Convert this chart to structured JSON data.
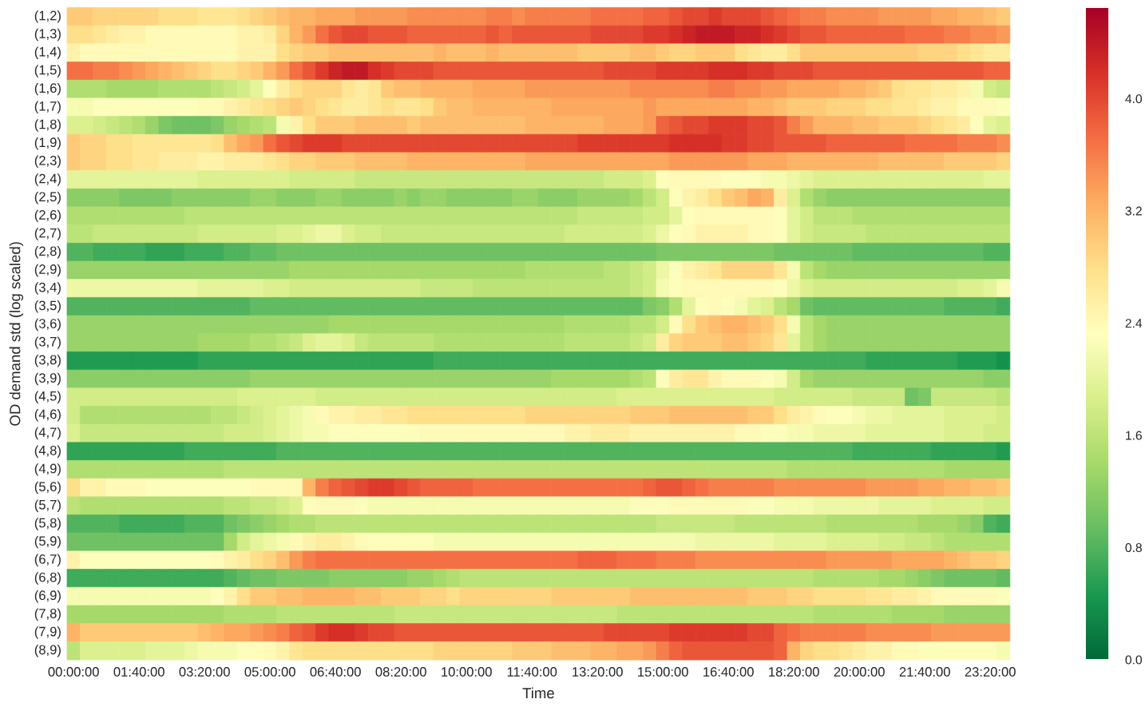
{
  "chart_data": {
    "type": "heatmap",
    "xlabel": "Time",
    "ylabel": "OD demand std (log scaled)",
    "categories": [
      "00:00:00",
      null,
      null,
      null,
      null,
      "01:40:00",
      null,
      null,
      null,
      null,
      "03:20:00",
      null,
      null,
      null,
      null,
      "05:00:00",
      null,
      null,
      null,
      null,
      "06:40:00",
      null,
      null,
      null,
      null,
      "08:20:00",
      null,
      null,
      null,
      null,
      "10:00:00",
      null,
      null,
      null,
      null,
      "11:40:00",
      null,
      null,
      null,
      null,
      "13:20:00",
      null,
      null,
      null,
      null,
      "15:00:00",
      null,
      null,
      null,
      null,
      "16:40:00",
      null,
      null,
      null,
      null,
      "18:20:00",
      null,
      null,
      null,
      null,
      "20:00:00",
      null,
      null,
      null,
      null,
      "21:40:00",
      null,
      null,
      null,
      null,
      "23:20:00",
      null
    ],
    "y_categories": [
      "(1,2)",
      "(1,3)",
      "(1,4)",
      "(1,5)",
      "(1,6)",
      "(1,7)",
      "(1,8)",
      "(1,9)",
      "(2,3)",
      "(2,4)",
      "(2,5)",
      "(2,6)",
      "(2,7)",
      "(2,8)",
      "(2,9)",
      "(3,4)",
      "(3,5)",
      "(3,6)",
      "(3,7)",
      "(3,8)",
      "(3,9)",
      "(4,5)",
      "(4,6)",
      "(4,7)",
      "(4,8)",
      "(4,9)",
      "(5,6)",
      "(5,7)",
      "(5,8)",
      "(5,9)",
      "(6,7)",
      "(6,8)",
      "(6,9)",
      "(7,8)",
      "(7,9)",
      "(8,9)"
    ],
    "clim": [
      0,
      4.65
    ],
    "cticks": [
      {
        "value": 0,
        "label": "0.0"
      },
      0.8,
      1.6,
      2.4,
      3.2,
      {
        "value": 4,
        "label": "4.0"
      }
    ],
    "cells": [
      [
        3.0,
        3.0,
        2.9,
        2.9,
        2.9,
        2.9,
        2.9,
        2.8,
        2.8,
        2.8,
        2.7,
        2.7,
        2.7,
        2.8,
        2.9,
        3.0,
        3.1,
        3.2,
        3.2,
        3.3,
        3.3,
        3.3,
        3.4,
        3.4,
        3.4,
        3.4,
        3.5,
        3.5,
        3.5,
        3.5,
        3.5,
        3.5,
        3.6,
        3.6,
        3.5,
        3.6,
        3.6,
        3.6,
        3.6,
        3.6,
        3.7,
        3.7,
        3.7,
        3.7,
        3.8,
        3.8,
        3.9,
        4.0,
        4.0,
        4.1,
        4.0,
        4.0,
        4.0,
        3.9,
        3.8,
        3.7,
        3.6,
        3.6,
        3.5,
        3.5,
        3.5,
        3.5,
        3.4,
        3.4,
        3.4,
        3.4,
        3.3,
        3.3,
        3.2,
        3.2,
        3.1,
        3.0
      ],
      [
        2.8,
        2.8,
        2.7,
        2.6,
        2.5,
        2.5,
        2.4,
        2.4,
        2.4,
        2.4,
        2.4,
        2.4,
        2.4,
        2.5,
        2.5,
        2.6,
        2.9,
        3.2,
        3.4,
        3.7,
        3.9,
        4.0,
        4.0,
        3.9,
        3.9,
        3.9,
        3.8,
        3.8,
        3.8,
        3.8,
        3.8,
        3.8,
        3.9,
        3.8,
        3.9,
        3.9,
        3.9,
        3.9,
        3.9,
        3.9,
        4.0,
        4.0,
        4.0,
        4.0,
        4.1,
        4.1,
        4.2,
        4.3,
        4.4,
        4.4,
        4.4,
        4.3,
        4.3,
        4.2,
        4.1,
        4.0,
        3.9,
        3.9,
        3.8,
        3.8,
        3.8,
        3.8,
        3.8,
        3.8,
        3.7,
        3.7,
        3.7,
        3.6,
        3.6,
        3.5,
        3.5,
        3.4
      ],
      [
        2.5,
        2.4,
        2.4,
        2.4,
        2.4,
        2.4,
        2.4,
        2.4,
        2.4,
        2.4,
        2.4,
        2.4,
        2.4,
        2.5,
        2.5,
        2.5,
        2.8,
        2.9,
        3.0,
        3.0,
        3.1,
        3.1,
        3.1,
        3.1,
        3.1,
        3.1,
        3.1,
        3.1,
        3.2,
        3.1,
        3.1,
        3.1,
        3.2,
        3.1,
        3.1,
        3.1,
        3.1,
        3.1,
        3.1,
        3.0,
        3.0,
        3.0,
        3.0,
        3.1,
        3.1,
        3.0,
        2.9,
        2.9,
        3.0,
        3.0,
        3.0,
        2.8,
        2.7,
        2.6,
        2.6,
        2.8,
        3.0,
        3.0,
        3.0,
        3.0,
        3.0,
        3.0,
        3.0,
        3.0,
        3.0,
        2.9,
        2.9,
        2.9,
        2.8,
        2.7,
        2.6,
        2.6
      ],
      [
        3.7,
        3.7,
        3.6,
        3.6,
        3.5,
        3.4,
        3.3,
        3.2,
        3.1,
        3.0,
        2.9,
        2.8,
        2.8,
        2.9,
        3.0,
        3.2,
        3.4,
        3.7,
        3.9,
        4.1,
        4.3,
        4.4,
        4.4,
        4.2,
        4.1,
        4.0,
        4.0,
        4.0,
        3.9,
        3.9,
        3.9,
        3.9,
        3.9,
        3.9,
        3.9,
        3.9,
        3.9,
        3.9,
        3.9,
        3.9,
        3.9,
        4.0,
        4.0,
        4.0,
        4.0,
        4.1,
        4.1,
        4.1,
        4.1,
        4.2,
        4.2,
        4.2,
        4.1,
        4.1,
        4.0,
        4.0,
        4.0,
        3.9,
        3.9,
        3.9,
        3.9,
        3.9,
        3.9,
        3.9,
        3.9,
        3.9,
        3.9,
        3.9,
        3.9,
        3.9,
        3.8,
        3.8
      ],
      [
        1.5,
        1.5,
        1.5,
        1.4,
        1.4,
        1.4,
        1.4,
        1.5,
        1.5,
        1.5,
        1.5,
        1.6,
        1.7,
        1.8,
        2.0,
        2.3,
        2.6,
        2.8,
        2.9,
        2.9,
        2.9,
        2.7,
        2.6,
        2.7,
        3.0,
        3.1,
        3.1,
        3.2,
        3.2,
        3.2,
        3.2,
        3.3,
        3.3,
        3.3,
        3.3,
        3.4,
        3.4,
        3.4,
        3.4,
        3.4,
        3.4,
        3.4,
        3.4,
        3.5,
        3.5,
        3.5,
        3.5,
        3.5,
        3.5,
        3.6,
        3.6,
        3.5,
        3.5,
        3.4,
        3.4,
        3.3,
        3.3,
        3.3,
        3.3,
        3.2,
        3.2,
        3.1,
        3.0,
        2.8,
        2.7,
        2.7,
        2.6,
        2.6,
        2.5,
        2.2,
        1.8,
        1.7
      ],
      [
        2.2,
        2.2,
        2.3,
        2.3,
        2.3,
        2.3,
        2.3,
        2.3,
        2.3,
        2.3,
        2.4,
        2.4,
        2.5,
        2.6,
        2.7,
        2.8,
        2.9,
        3.0,
        2.9,
        2.8,
        2.7,
        2.6,
        2.6,
        2.7,
        2.8,
        2.7,
        2.7,
        2.8,
        3.0,
        3.1,
        3.1,
        3.2,
        3.2,
        3.2,
        3.2,
        3.2,
        3.2,
        3.3,
        3.3,
        3.3,
        3.3,
        3.3,
        3.3,
        3.3,
        3.4,
        3.3,
        3.3,
        3.3,
        3.3,
        3.3,
        3.3,
        3.3,
        3.2,
        3.2,
        3.1,
        3.0,
        3.0,
        3.0,
        2.9,
        2.9,
        2.9,
        2.8,
        2.8,
        2.7,
        2.7,
        2.6,
        2.5,
        2.5,
        2.4,
        2.4,
        2.4,
        2.3
      ],
      [
        1.9,
        1.9,
        1.8,
        1.7,
        1.6,
        1.5,
        1.3,
        1.1,
        1.0,
        1.0,
        1.0,
        1.1,
        1.3,
        1.4,
        1.5,
        1.6,
        2.2,
        2.5,
        2.8,
        3.0,
        3.0,
        3.0,
        3.1,
        3.1,
        3.1,
        3.1,
        3.0,
        3.1,
        3.1,
        3.1,
        3.1,
        3.1,
        3.1,
        3.1,
        3.1,
        3.2,
        3.2,
        3.2,
        3.2,
        3.2,
        3.2,
        3.3,
        3.3,
        3.3,
        3.4,
        3.8,
        3.9,
        4.0,
        4.0,
        4.1,
        4.1,
        4.1,
        4.0,
        4.0,
        3.9,
        3.6,
        3.4,
        3.2,
        3.2,
        3.2,
        3.1,
        3.1,
        3.0,
        3.0,
        3.0,
        2.9,
        2.8,
        2.7,
        2.6,
        2.3,
        2.0,
        1.9
      ],
      [
        3.0,
        2.9,
        2.9,
        2.8,
        2.8,
        2.7,
        2.7,
        2.7,
        2.7,
        2.7,
        2.7,
        2.8,
        3.1,
        3.3,
        3.4,
        3.7,
        3.9,
        4.0,
        4.1,
        4.1,
        4.1,
        4.0,
        4.0,
        4.0,
        4.0,
        4.0,
        4.0,
        4.0,
        4.0,
        4.0,
        4.0,
        4.0,
        4.0,
        4.0,
        4.0,
        4.0,
        4.0,
        4.0,
        4.0,
        4.1,
        4.1,
        4.1,
        4.1,
        4.1,
        4.1,
        4.1,
        4.2,
        4.2,
        4.2,
        4.2,
        4.1,
        4.1,
        4.0,
        4.0,
        3.9,
        3.9,
        3.9,
        3.9,
        3.8,
        3.8,
        3.8,
        3.8,
        3.8,
        3.8,
        3.7,
        3.7,
        3.7,
        3.7,
        3.6,
        3.6,
        3.6,
        3.5
      ],
      [
        3.0,
        2.9,
        2.9,
        2.8,
        2.8,
        2.7,
        2.7,
        2.6,
        2.6,
        2.6,
        2.5,
        2.5,
        2.6,
        2.6,
        2.6,
        2.7,
        2.8,
        2.9,
        2.9,
        3.0,
        3.0,
        3.0,
        3.1,
        3.1,
        3.1,
        3.1,
        3.2,
        3.2,
        3.2,
        3.2,
        3.2,
        3.2,
        3.2,
        3.2,
        3.2,
        3.3,
        3.3,
        3.3,
        3.3,
        3.3,
        3.3,
        3.3,
        3.3,
        3.3,
        3.3,
        3.3,
        3.4,
        3.4,
        3.4,
        3.4,
        3.4,
        3.4,
        3.3,
        3.3,
        3.3,
        3.2,
        3.2,
        3.2,
        3.2,
        3.2,
        3.2,
        3.2,
        3.1,
        3.1,
        3.1,
        3.1,
        3.1,
        3.0,
        3.0,
        3.0,
        3.0,
        2.9
      ],
      [
        2.0,
        2.0,
        2.0,
        2.0,
        2.0,
        2.0,
        2.0,
        2.0,
        2.0,
        2.0,
        1.9,
        1.9,
        1.9,
        1.9,
        1.9,
        1.9,
        1.9,
        1.8,
        1.8,
        1.8,
        1.8,
        1.8,
        1.7,
        1.7,
        1.7,
        1.7,
        1.7,
        1.7,
        1.7,
        1.7,
        1.7,
        1.7,
        1.7,
        1.7,
        1.7,
        1.7,
        1.7,
        1.7,
        1.7,
        1.7,
        1.7,
        1.8,
        1.8,
        1.8,
        1.9,
        2.3,
        2.4,
        2.4,
        2.4,
        2.4,
        2.3,
        2.3,
        2.3,
        2.2,
        2.2,
        2.1,
        2.0,
        1.9,
        1.9,
        1.9,
        1.9,
        1.9,
        1.9,
        1.9,
        1.9,
        1.9,
        1.9,
        1.9,
        1.9,
        1.9,
        2.0,
        2.0
      ],
      [
        1.2,
        1.2,
        1.2,
        1.2,
        1.1,
        1.1,
        1.1,
        1.1,
        1.2,
        1.2,
        1.2,
        1.2,
        1.2,
        1.2,
        1.3,
        1.3,
        1.2,
        1.2,
        1.2,
        1.3,
        1.3,
        1.2,
        1.2,
        1.2,
        1.2,
        1.3,
        1.2,
        1.3,
        1.3,
        1.2,
        1.2,
        1.2,
        1.2,
        1.2,
        1.3,
        1.3,
        1.2,
        1.2,
        1.2,
        1.3,
        1.3,
        1.3,
        1.3,
        1.4,
        1.6,
        1.8,
        2.3,
        2.5,
        2.6,
        2.8,
        3.0,
        3.1,
        3.3,
        3.2,
        2.6,
        1.9,
        1.5,
        1.3,
        1.2,
        1.2,
        1.2,
        1.2,
        1.2,
        1.2,
        1.2,
        1.2,
        1.2,
        1.2,
        1.2,
        1.2,
        1.2,
        1.2
      ],
      [
        1.5,
        1.5,
        1.5,
        1.5,
        1.5,
        1.5,
        1.5,
        1.5,
        1.5,
        1.6,
        1.6,
        1.6,
        1.6,
        1.6,
        1.6,
        1.6,
        1.6,
        1.6,
        1.6,
        1.6,
        1.6,
        1.6,
        1.6,
        1.6,
        1.6,
        1.6,
        1.6,
        1.6,
        1.6,
        1.6,
        1.6,
        1.6,
        1.6,
        1.6,
        1.6,
        1.6,
        1.6,
        1.6,
        1.6,
        1.7,
        1.7,
        1.7,
        1.7,
        1.7,
        1.8,
        1.8,
        2.0,
        2.3,
        2.4,
        2.4,
        2.4,
        2.4,
        2.4,
        2.4,
        2.3,
        2.0,
        1.8,
        1.6,
        1.6,
        1.6,
        1.5,
        1.5,
        1.5,
        1.5,
        1.5,
        1.5,
        1.5,
        1.5,
        1.5,
        1.5,
        1.5,
        1.5
      ],
      [
        1.6,
        1.6,
        1.7,
        1.7,
        1.7,
        1.7,
        1.7,
        1.7,
        1.7,
        1.7,
        1.8,
        1.8,
        1.8,
        1.8,
        1.8,
        1.8,
        1.9,
        1.9,
        2.0,
        2.1,
        2.1,
        1.9,
        1.8,
        1.8,
        1.7,
        1.7,
        1.7,
        1.7,
        1.7,
        1.7,
        1.7,
        1.7,
        1.7,
        1.7,
        1.7,
        1.7,
        1.7,
        1.7,
        1.8,
        1.8,
        1.8,
        1.8,
        1.8,
        1.8,
        1.9,
        2.1,
        2.3,
        2.4,
        2.5,
        2.5,
        2.5,
        2.5,
        2.4,
        2.4,
        2.3,
        2.0,
        1.8,
        1.7,
        1.7,
        1.7,
        1.7,
        1.6,
        1.6,
        1.6,
        1.6,
        1.6,
        1.6,
        1.6,
        1.6,
        1.6,
        1.6,
        1.6
      ],
      [
        0.8,
        0.8,
        0.7,
        0.7,
        0.7,
        0.7,
        0.6,
        0.6,
        0.6,
        0.7,
        0.7,
        0.7,
        0.8,
        0.8,
        0.9,
        0.9,
        1.0,
        1.0,
        1.0,
        1.0,
        1.0,
        1.0,
        1.0,
        1.0,
        1.0,
        1.0,
        1.0,
        1.0,
        1.0,
        1.0,
        1.0,
        1.0,
        1.0,
        1.0,
        1.0,
        1.0,
        1.0,
        1.0,
        1.0,
        1.0,
        1.0,
        1.0,
        1.0,
        1.0,
        1.0,
        1.1,
        1.1,
        1.1,
        1.1,
        1.1,
        1.1,
        1.1,
        1.1,
        1.1,
        1.0,
        1.0,
        1.0,
        1.0,
        1.0,
        1.0,
        0.9,
        0.9,
        0.9,
        0.9,
        0.9,
        0.9,
        0.9,
        0.9,
        0.9,
        0.9,
        0.8,
        0.8
      ],
      [
        1.3,
        1.3,
        1.3,
        1.3,
        1.3,
        1.3,
        1.3,
        1.3,
        1.3,
        1.3,
        1.3,
        1.3,
        1.3,
        1.3,
        1.3,
        1.3,
        1.3,
        1.4,
        1.4,
        1.4,
        1.4,
        1.4,
        1.4,
        1.4,
        1.4,
        1.4,
        1.4,
        1.4,
        1.4,
        1.4,
        1.4,
        1.4,
        1.4,
        1.4,
        1.4,
        1.5,
        1.5,
        1.5,
        1.5,
        1.5,
        1.5,
        1.6,
        1.6,
        1.7,
        1.8,
        2.1,
        2.3,
        2.5,
        2.6,
        2.7,
        2.9,
        2.9,
        2.9,
        2.9,
        2.7,
        2.2,
        1.6,
        1.4,
        1.3,
        1.3,
        1.3,
        1.3,
        1.3,
        1.3,
        1.3,
        1.3,
        1.3,
        1.3,
        1.3,
        1.3,
        1.3,
        1.3
      ],
      [
        2.1,
        2.1,
        2.1,
        2.1,
        2.1,
        2.1,
        2.1,
        2.1,
        2.1,
        2.1,
        2.0,
        2.0,
        2.0,
        2.0,
        2.0,
        1.9,
        1.9,
        1.8,
        1.8,
        1.8,
        1.8,
        1.8,
        1.8,
        1.8,
        1.8,
        1.8,
        1.8,
        1.7,
        1.7,
        1.7,
        1.7,
        1.6,
        1.6,
        1.6,
        1.6,
        1.6,
        1.6,
        1.6,
        1.6,
        1.6,
        1.6,
        1.6,
        1.6,
        1.7,
        1.8,
        2.2,
        2.3,
        2.4,
        2.4,
        2.4,
        2.4,
        2.4,
        2.4,
        2.4,
        2.3,
        2.1,
        1.9,
        1.8,
        1.8,
        1.8,
        1.8,
        1.8,
        1.8,
        1.8,
        1.8,
        1.8,
        1.8,
        1.8,
        1.9,
        1.9,
        2.0,
        2.2
      ],
      [
        0.8,
        0.8,
        0.8,
        0.8,
        0.8,
        0.8,
        0.8,
        0.8,
        0.8,
        0.8,
        0.8,
        0.8,
        0.8,
        0.8,
        0.9,
        0.9,
        0.9,
        0.9,
        0.9,
        0.9,
        0.9,
        0.9,
        0.9,
        0.9,
        0.9,
        0.9,
        0.9,
        0.9,
        0.9,
        0.9,
        0.9,
        0.9,
        0.9,
        0.9,
        0.9,
        0.9,
        0.9,
        0.9,
        0.9,
        0.9,
        0.9,
        0.9,
        0.9,
        0.9,
        1.1,
        1.2,
        1.5,
        2.0,
        2.3,
        2.4,
        2.3,
        2.2,
        2.0,
        1.9,
        1.6,
        1.4,
        1.0,
        0.9,
        0.9,
        0.9,
        0.9,
        0.9,
        0.9,
        0.9,
        0.9,
        0.9,
        0.9,
        0.8,
        0.8,
        0.8,
        0.8,
        0.7
      ],
      [
        1.3,
        1.3,
        1.3,
        1.3,
        1.3,
        1.3,
        1.3,
        1.3,
        1.3,
        1.3,
        1.3,
        1.3,
        1.3,
        1.3,
        1.3,
        1.3,
        1.3,
        1.3,
        1.3,
        1.3,
        1.4,
        1.4,
        1.4,
        1.4,
        1.4,
        1.4,
        1.4,
        1.4,
        1.4,
        1.4,
        1.4,
        1.4,
        1.4,
        1.4,
        1.4,
        1.4,
        1.4,
        1.4,
        1.5,
        1.5,
        1.5,
        1.5,
        1.5,
        1.6,
        1.6,
        1.8,
        2.4,
        2.8,
        3.0,
        3.1,
        3.2,
        3.2,
        3.1,
        3.0,
        2.8,
        2.2,
        1.6,
        1.4,
        1.3,
        1.3,
        1.3,
        1.3,
        1.3,
        1.3,
        1.3,
        1.3,
        1.3,
        1.3,
        1.3,
        1.3,
        1.3,
        1.3
      ],
      [
        1.3,
        1.3,
        1.3,
        1.3,
        1.3,
        1.3,
        1.3,
        1.3,
        1.3,
        1.3,
        1.4,
        1.4,
        1.4,
        1.4,
        1.5,
        1.5,
        1.6,
        1.7,
        1.9,
        2.0,
        2.0,
        1.9,
        1.7,
        1.6,
        1.6,
        1.6,
        1.6,
        1.6,
        1.5,
        1.5,
        1.5,
        1.5,
        1.5,
        1.5,
        1.5,
        1.5,
        1.5,
        1.5,
        1.6,
        1.6,
        1.6,
        1.6,
        1.6,
        1.7,
        1.8,
        2.6,
        2.9,
        3.0,
        3.0,
        3.0,
        3.1,
        3.1,
        3.0,
        2.9,
        2.7,
        2.0,
        1.6,
        1.4,
        1.3,
        1.3,
        1.3,
        1.3,
        1.3,
        1.3,
        1.3,
        1.3,
        1.3,
        1.3,
        1.3,
        1.3,
        1.3,
        1.3
      ],
      [
        0.5,
        0.5,
        0.5,
        0.5,
        0.5,
        0.5,
        0.5,
        0.5,
        0.5,
        0.5,
        0.6,
        0.6,
        0.6,
        0.6,
        0.6,
        0.6,
        0.6,
        0.6,
        0.6,
        0.6,
        0.6,
        0.6,
        0.6,
        0.6,
        0.6,
        0.6,
        0.6,
        0.6,
        0.7,
        0.7,
        0.7,
        0.7,
        0.7,
        0.7,
        0.7,
        0.7,
        0.7,
        0.7,
        0.7,
        0.7,
        0.7,
        0.7,
        0.7,
        0.7,
        0.7,
        0.7,
        0.7,
        0.7,
        0.7,
        0.7,
        0.7,
        0.7,
        0.7,
        0.7,
        0.7,
        0.7,
        0.7,
        0.7,
        0.7,
        0.7,
        0.7,
        0.6,
        0.6,
        0.6,
        0.6,
        0.6,
        0.6,
        0.6,
        0.5,
        0.5,
        0.5,
        0.4
      ],
      [
        1.2,
        1.2,
        1.2,
        1.2,
        1.2,
        1.2,
        1.2,
        1.2,
        1.2,
        1.2,
        1.2,
        1.2,
        1.2,
        1.2,
        1.3,
        1.3,
        1.3,
        1.3,
        1.3,
        1.3,
        1.3,
        1.3,
        1.3,
        1.3,
        1.3,
        1.3,
        1.3,
        1.3,
        1.3,
        1.3,
        1.3,
        1.3,
        1.3,
        1.3,
        1.3,
        1.3,
        1.3,
        1.4,
        1.4,
        1.4,
        1.4,
        1.4,
        1.4,
        1.5,
        1.6,
        2.3,
        2.6,
        2.7,
        2.7,
        2.5,
        2.4,
        2.4,
        2.4,
        2.3,
        2.2,
        1.8,
        1.4,
        1.3,
        1.3,
        1.3,
        1.3,
        1.3,
        1.3,
        1.3,
        1.3,
        1.3,
        1.3,
        1.3,
        1.3,
        1.3,
        1.2,
        1.2
      ],
      [
        1.8,
        1.8,
        1.8,
        1.8,
        1.8,
        1.8,
        1.8,
        1.8,
        1.8,
        1.8,
        1.8,
        1.8,
        1.8,
        1.9,
        1.9,
        1.9,
        1.9,
        1.9,
        1.9,
        1.8,
        1.8,
        1.8,
        1.8,
        1.8,
        1.8,
        1.8,
        1.8,
        1.8,
        1.8,
        1.8,
        1.8,
        1.8,
        1.8,
        1.8,
        1.8,
        1.8,
        1.8,
        1.8,
        1.8,
        1.8,
        1.8,
        1.8,
        1.9,
        1.9,
        1.9,
        1.9,
        1.9,
        1.9,
        1.9,
        1.9,
        1.9,
        1.9,
        1.9,
        1.9,
        1.8,
        1.8,
        1.8,
        1.8,
        1.8,
        1.8,
        1.7,
        1.7,
        1.7,
        1.7,
        1.0,
        1.1,
        1.7,
        1.7,
        1.7,
        1.7,
        1.7,
        1.6
      ],
      [
        1.8,
        1.5,
        1.5,
        1.5,
        1.5,
        1.5,
        1.5,
        1.5,
        1.5,
        1.5,
        1.5,
        1.6,
        1.6,
        1.7,
        1.8,
        1.9,
        2.0,
        2.1,
        2.2,
        2.4,
        2.5,
        2.5,
        2.6,
        2.6,
        2.7,
        2.7,
        2.8,
        2.8,
        2.8,
        2.8,
        2.8,
        2.8,
        2.8,
        2.8,
        2.8,
        2.9,
        2.9,
        2.9,
        2.9,
        2.9,
        2.9,
        2.9,
        2.9,
        3.0,
        3.0,
        3.0,
        3.1,
        3.1,
        3.1,
        3.1,
        3.1,
        3.1,
        3.0,
        3.0,
        2.8,
        2.6,
        2.5,
        2.4,
        2.3,
        2.3,
        2.2,
        2.1,
        2.1,
        2.0,
        2.0,
        2.0,
        2.0,
        1.9,
        1.9,
        1.9,
        1.9,
        1.8
      ],
      [
        1.9,
        1.7,
        1.7,
        1.7,
        1.7,
        1.7,
        1.7,
        1.7,
        1.7,
        1.7,
        1.7,
        1.7,
        1.8,
        1.8,
        1.8,
        1.9,
        2.0,
        2.1,
        2.2,
        2.2,
        2.3,
        2.3,
        2.3,
        2.3,
        2.3,
        2.3,
        2.3,
        2.4,
        2.4,
        2.4,
        2.4,
        2.4,
        2.4,
        2.4,
        2.4,
        2.4,
        2.4,
        2.4,
        2.5,
        2.5,
        2.6,
        2.6,
        2.6,
        2.5,
        2.5,
        2.5,
        2.5,
        2.5,
        2.5,
        2.5,
        2.5,
        2.4,
        2.4,
        2.3,
        2.3,
        2.2,
        2.2,
        2.1,
        2.1,
        2.1,
        2.1,
        2.0,
        2.0,
        2.0,
        2.0,
        2.0,
        2.0,
        1.9,
        1.9,
        1.9,
        1.8,
        1.8
      ],
      [
        0.6,
        0.6,
        0.6,
        0.6,
        0.6,
        0.6,
        0.6,
        0.6,
        0.6,
        0.7,
        0.7,
        0.7,
        0.7,
        0.7,
        0.7,
        0.7,
        0.8,
        0.8,
        0.8,
        0.8,
        0.8,
        0.8,
        0.8,
        0.8,
        0.8,
        0.8,
        0.8,
        0.8,
        0.8,
        0.8,
        0.8,
        0.8,
        0.8,
        0.8,
        0.8,
        0.8,
        0.8,
        0.8,
        0.8,
        0.8,
        0.8,
        0.8,
        0.8,
        0.8,
        0.8,
        0.8,
        0.8,
        0.8,
        0.8,
        0.8,
        0.8,
        0.8,
        0.8,
        0.8,
        0.8,
        0.8,
        0.8,
        0.8,
        0.8,
        0.8,
        0.7,
        0.7,
        0.7,
        0.7,
        0.7,
        0.7,
        0.6,
        0.6,
        0.6,
        0.6,
        0.6,
        0.5
      ],
      [
        1.5,
        1.5,
        1.5,
        1.5,
        1.5,
        1.5,
        1.5,
        1.5,
        1.5,
        1.5,
        1.5,
        1.5,
        1.6,
        1.6,
        1.6,
        1.6,
        1.6,
        1.6,
        1.6,
        1.6,
        1.6,
        1.6,
        1.6,
        1.6,
        1.6,
        1.6,
        1.6,
        1.6,
        1.6,
        1.6,
        1.6,
        1.6,
        1.6,
        1.6,
        1.6,
        1.6,
        1.6,
        1.6,
        1.6,
        1.6,
        1.6,
        1.6,
        1.6,
        1.6,
        1.6,
        1.6,
        1.6,
        1.6,
        1.6,
        1.6,
        1.6,
        1.6,
        1.6,
        1.6,
        1.6,
        1.5,
        1.5,
        1.5,
        1.5,
        1.5,
        1.5,
        1.5,
        1.5,
        1.5,
        1.5,
        1.5,
        1.5,
        1.4,
        1.4,
        1.4,
        1.4,
        1.4
      ],
      [
        2.8,
        2.5,
        2.5,
        2.4,
        2.4,
        2.4,
        2.3,
        2.3,
        2.3,
        2.3,
        2.3,
        2.3,
        2.3,
        2.3,
        2.4,
        2.4,
        2.4,
        2.4,
        3.2,
        3.6,
        3.8,
        3.9,
        4.0,
        4.1,
        4.1,
        4.0,
        3.9,
        3.8,
        3.8,
        3.8,
        3.8,
        3.7,
        3.7,
        3.7,
        3.7,
        3.7,
        3.7,
        3.7,
        3.7,
        3.7,
        3.7,
        3.7,
        3.7,
        3.7,
        3.8,
        3.9,
        3.9,
        3.8,
        3.7,
        3.6,
        3.6,
        3.6,
        3.6,
        3.6,
        3.5,
        3.5,
        3.5,
        3.5,
        3.5,
        3.5,
        3.5,
        3.4,
        3.4,
        3.4,
        3.4,
        3.3,
        3.3,
        3.2,
        3.2,
        3.1,
        3.1,
        3.0
      ],
      [
        1.6,
        1.5,
        1.5,
        1.5,
        1.5,
        1.5,
        1.5,
        1.5,
        1.5,
        1.5,
        1.5,
        1.5,
        1.6,
        1.6,
        1.7,
        1.7,
        1.8,
        1.9,
        2.3,
        2.4,
        2.4,
        2.4,
        2.3,
        2.2,
        2.2,
        2.2,
        2.2,
        2.2,
        2.2,
        2.2,
        2.2,
        2.2,
        2.2,
        2.2,
        2.2,
        2.2,
        2.2,
        2.2,
        2.2,
        2.2,
        2.2,
        2.2,
        2.2,
        2.3,
        2.3,
        2.3,
        2.4,
        2.4,
        2.4,
        2.4,
        2.4,
        2.4,
        2.3,
        2.3,
        2.2,
        2.2,
        2.2,
        2.1,
        2.1,
        2.1,
        2.1,
        2.1,
        2.0,
        2.0,
        2.0,
        2.0,
        1.9,
        1.9,
        1.9,
        1.9,
        1.8,
        1.8
      ],
      [
        0.8,
        0.8,
        0.8,
        0.8,
        0.7,
        0.7,
        0.7,
        0.7,
        0.7,
        0.8,
        0.8,
        0.8,
        1.0,
        1.1,
        1.2,
        1.3,
        1.4,
        1.5,
        1.5,
        1.6,
        1.6,
        1.6,
        1.6,
        1.6,
        1.6,
        1.6,
        1.6,
        1.6,
        1.6,
        1.6,
        1.6,
        1.6,
        1.6,
        1.6,
        1.6,
        1.6,
        1.6,
        1.6,
        1.6,
        1.6,
        1.6,
        1.6,
        1.6,
        1.6,
        1.6,
        1.7,
        1.7,
        1.7,
        1.7,
        1.7,
        1.7,
        1.6,
        1.6,
        1.6,
        1.6,
        1.6,
        1.6,
        1.6,
        1.5,
        1.5,
        1.5,
        1.5,
        1.5,
        1.5,
        1.5,
        1.4,
        1.4,
        1.4,
        1.3,
        1.2,
        0.8,
        0.7
      ],
      [
        1.0,
        1.0,
        1.0,
        1.0,
        1.0,
        1.0,
        1.0,
        1.0,
        1.0,
        1.0,
        1.0,
        1.0,
        1.4,
        1.8,
        2.0,
        2.1,
        2.2,
        2.4,
        2.5,
        2.6,
        2.6,
        2.5,
        2.4,
        2.3,
        2.3,
        2.3,
        2.3,
        2.3,
        2.2,
        2.2,
        2.2,
        2.2,
        2.2,
        2.2,
        2.2,
        2.2,
        2.2,
        2.2,
        2.2,
        2.2,
        2.2,
        2.2,
        2.2,
        2.2,
        2.2,
        2.2,
        2.2,
        2.2,
        2.1,
        2.1,
        2.1,
        2.1,
        2.1,
        2.1,
        2.0,
        2.0,
        2.0,
        2.0,
        1.9,
        1.9,
        1.9,
        1.9,
        1.8,
        1.8,
        1.7,
        1.7,
        1.6,
        1.5,
        1.5,
        1.5,
        1.5,
        1.5
      ],
      [
        2.5,
        2.3,
        2.3,
        2.3,
        2.3,
        2.3,
        2.3,
        2.3,
        2.3,
        2.3,
        2.3,
        2.4,
        2.5,
        2.6,
        2.8,
        2.9,
        3.1,
        3.4,
        3.6,
        3.7,
        3.7,
        3.7,
        3.7,
        3.7,
        3.7,
        3.7,
        3.7,
        3.7,
        3.7,
        3.7,
        3.7,
        3.7,
        3.7,
        3.7,
        3.7,
        3.7,
        3.7,
        3.7,
        3.7,
        3.8,
        3.8,
        3.8,
        3.7,
        3.7,
        3.7,
        3.6,
        3.6,
        3.6,
        3.5,
        3.5,
        3.5,
        3.5,
        3.5,
        3.5,
        3.5,
        3.5,
        3.5,
        3.5,
        3.4,
        3.4,
        3.4,
        3.4,
        3.4,
        3.3,
        3.3,
        3.3,
        3.3,
        3.2,
        3.1,
        3.0,
        3.0,
        2.9
      ],
      [
        0.7,
        0.7,
        0.7,
        0.7,
        0.7,
        0.7,
        0.7,
        0.7,
        0.7,
        0.7,
        0.7,
        0.7,
        0.8,
        0.9,
        1.0,
        1.0,
        1.1,
        1.1,
        1.1,
        1.1,
        1.2,
        1.2,
        1.2,
        1.2,
        1.2,
        1.2,
        1.3,
        1.3,
        1.4,
        1.5,
        1.6,
        1.6,
        1.6,
        1.6,
        1.6,
        1.6,
        1.6,
        1.6,
        1.6,
        1.6,
        1.6,
        1.6,
        1.6,
        1.6,
        1.6,
        1.6,
        1.6,
        1.6,
        1.6,
        1.6,
        1.6,
        1.6,
        1.6,
        1.6,
        1.6,
        1.6,
        1.6,
        1.5,
        1.5,
        1.5,
        1.5,
        1.5,
        1.4,
        1.4,
        1.3,
        1.2,
        1.1,
        1.0,
        1.0,
        1.0,
        1.0,
        0.9
      ],
      [
        2.2,
        2.2,
        2.2,
        2.2,
        2.2,
        2.2,
        2.2,
        2.2,
        2.2,
        2.2,
        2.2,
        2.3,
        2.5,
        2.8,
        3.0,
        3.0,
        3.1,
        3.1,
        3.2,
        3.2,
        3.2,
        3.2,
        3.1,
        3.1,
        3.0,
        3.0,
        3.0,
        2.9,
        2.9,
        2.8,
        2.9,
        2.9,
        2.9,
        2.9,
        2.9,
        2.9,
        2.9,
        3.0,
        3.0,
        3.0,
        3.0,
        3.0,
        3.0,
        3.1,
        3.1,
        3.1,
        3.1,
        3.1,
        3.1,
        3.1,
        3.1,
        3.1,
        3.0,
        3.0,
        3.0,
        2.9,
        2.9,
        2.8,
        2.8,
        2.8,
        2.8,
        2.7,
        2.7,
        2.6,
        2.6,
        2.5,
        2.4,
        2.4,
        2.4,
        2.4,
        2.4,
        2.3
      ],
      [
        1.4,
        1.4,
        1.4,
        1.4,
        1.4,
        1.4,
        1.4,
        1.4,
        1.4,
        1.4,
        1.4,
        1.4,
        1.5,
        1.5,
        1.5,
        1.5,
        1.6,
        1.6,
        1.6,
        1.6,
        1.6,
        1.6,
        1.6,
        1.6,
        1.6,
        1.7,
        1.7,
        1.7,
        1.7,
        1.7,
        1.7,
        1.7,
        1.7,
        1.7,
        1.7,
        1.7,
        1.7,
        1.7,
        1.7,
        1.7,
        1.7,
        1.7,
        1.6,
        1.6,
        1.6,
        1.6,
        1.6,
        1.6,
        1.6,
        1.6,
        1.6,
        1.6,
        1.6,
        1.6,
        1.6,
        1.6,
        1.6,
        1.5,
        1.5,
        1.5,
        1.5,
        1.5,
        1.5,
        1.4,
        1.4,
        1.4,
        1.4,
        1.3,
        1.3,
        1.3,
        1.3,
        1.3
      ],
      [
        3.2,
        3.0,
        3.0,
        3.0,
        3.0,
        3.0,
        3.0,
        3.0,
        3.0,
        3.0,
        3.1,
        3.2,
        3.3,
        3.3,
        3.4,
        3.5,
        3.6,
        3.8,
        3.9,
        4.1,
        4.2,
        4.2,
        4.1,
        4.0,
        4.0,
        3.9,
        3.9,
        3.9,
        3.9,
        3.9,
        3.9,
        3.9,
        3.9,
        3.9,
        3.9,
        3.9,
        3.9,
        3.9,
        3.9,
        3.9,
        3.9,
        4.0,
        4.0,
        4.0,
        4.0,
        4.0,
        4.1,
        4.1,
        4.1,
        4.1,
        4.1,
        4.1,
        4.0,
        4.0,
        3.8,
        3.7,
        3.6,
        3.6,
        3.6,
        3.6,
        3.6,
        3.5,
        3.5,
        3.5,
        3.5,
        3.5,
        3.4,
        3.4,
        3.4,
        3.4,
        3.4,
        3.4
      ],
      [
        1.6,
        1.9,
        1.9,
        1.9,
        1.9,
        1.9,
        2.0,
        2.0,
        2.0,
        2.1,
        2.2,
        2.2,
        2.2,
        2.3,
        2.3,
        2.4,
        2.5,
        2.7,
        2.8,
        2.8,
        2.8,
        2.8,
        2.8,
        2.8,
        2.8,
        2.8,
        2.8,
        2.8,
        2.9,
        2.9,
        2.9,
        2.9,
        2.9,
        2.9,
        3.0,
        3.0,
        3.0,
        3.1,
        3.1,
        3.1,
        3.2,
        3.2,
        3.3,
        3.3,
        3.4,
        3.6,
        3.8,
        3.9,
        3.9,
        3.9,
        3.9,
        3.9,
        3.9,
        3.9,
        3.8,
        3.2,
        2.9,
        2.8,
        2.8,
        2.7,
        2.6,
        2.5,
        2.5,
        2.4,
        2.4,
        2.3,
        2.3,
        2.3,
        2.3,
        2.3,
        2.3,
        2.2
      ]
    ]
  }
}
